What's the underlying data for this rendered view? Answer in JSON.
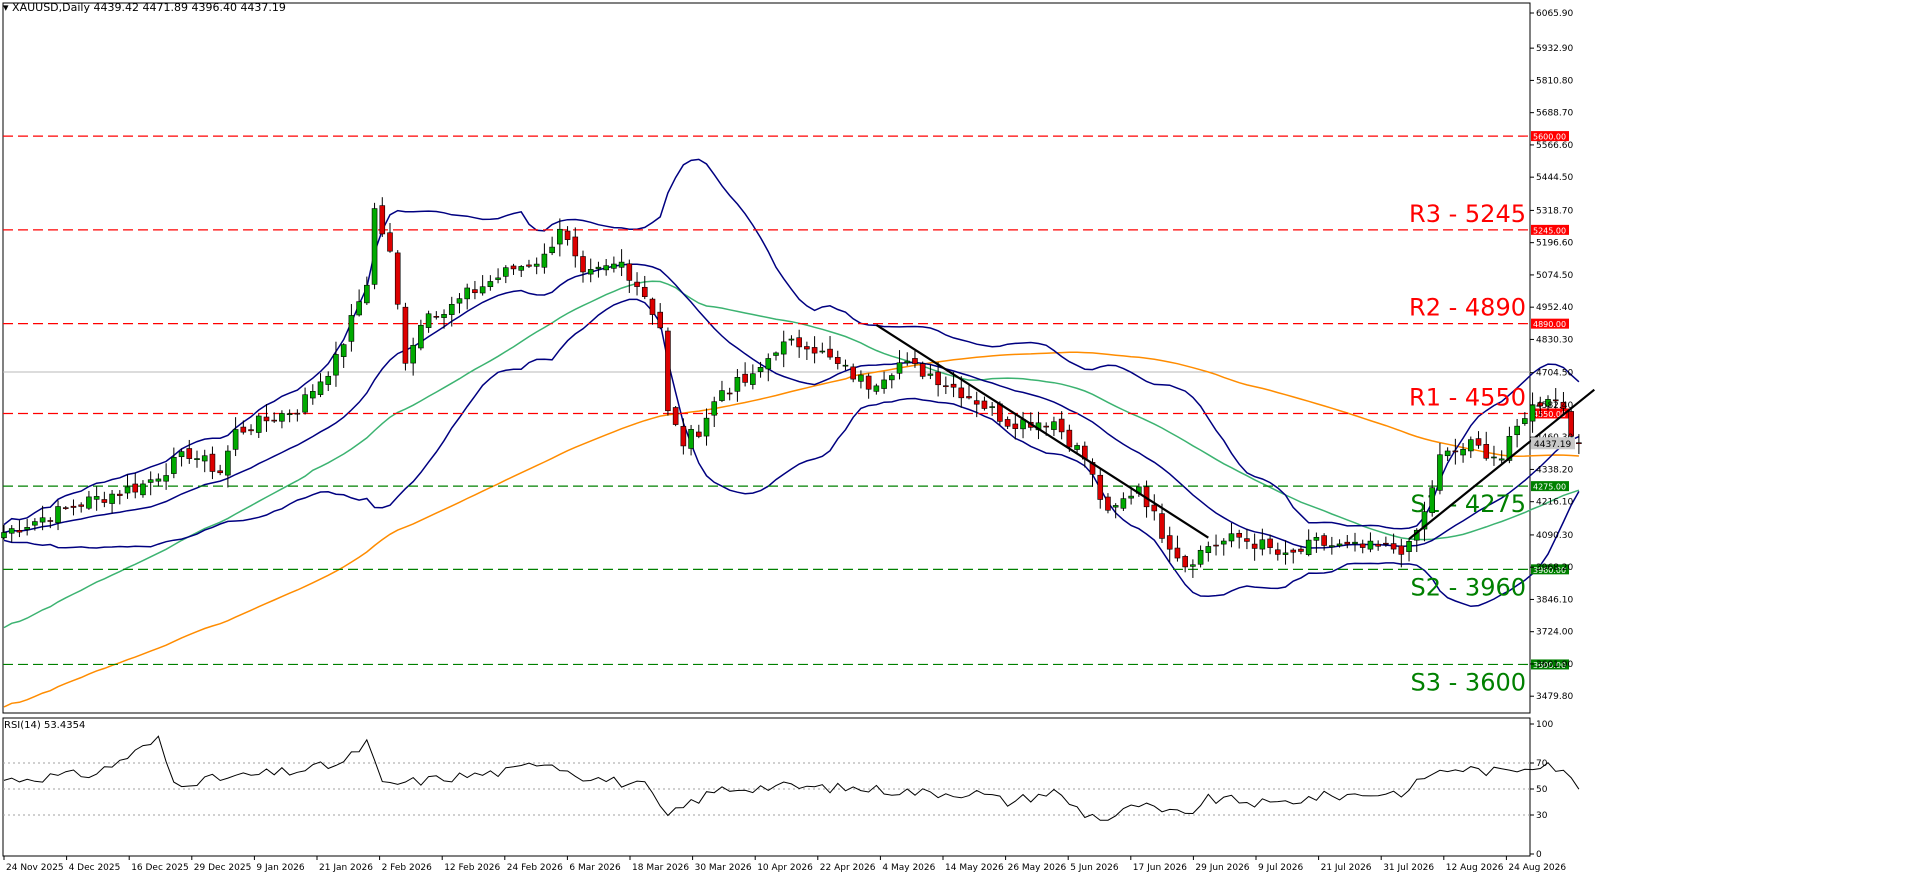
{
  "header": {
    "symbol": "XAUUSD,Daily",
    "ohlc": "4439.42 4471.89 4396.40 4437.19",
    "rsi_label": "RSI(14) 53.4354"
  },
  "colors": {
    "bull": "#00aa00",
    "bear": "#dd0000",
    "bollinger": "#000080",
    "ma_green": "#3cb371",
    "ma_orange": "#ff8c00",
    "resistance": "#ff0000",
    "support": "#008000",
    "trendline": "#000000",
    "rsi": "#000000",
    "grid": "#c0c0c0"
  },
  "chart_data": {
    "type": "candlestick",
    "symbol": "XAUUSD",
    "timeframe": "Daily",
    "price_axis": {
      "range": [
        3420,
        6100
      ],
      "ticks": [
        "6065.90",
        "5932.90",
        "5810.80",
        "5688.70",
        "5566.60",
        "5444.50",
        "5318.70",
        "5196.60",
        "5074.50",
        "4952.40",
        "4830.30",
        "4704.50",
        "4582.40",
        "4460.30",
        "4338.20",
        "4216.10",
        "4090.30",
        "3968.20",
        "3846.10",
        "3724.00",
        "3601.90",
        "3479.80"
      ]
    },
    "date_axis": [
      "24 Nov 2025",
      "4 Dec 2025",
      "16 Dec 2025",
      "29 Dec 2025",
      "9 Jan 2026",
      "21 Jan 2026",
      "2 Feb 2026",
      "12 Feb 2026",
      "24 Feb 2026",
      "6 Mar 2026",
      "18 Mar 2026",
      "30 Mar 2026",
      "10 Apr 2026",
      "22 Apr 2026",
      "4 May 2026",
      "14 May 2026",
      "26 May 2026",
      "5 Jun 2026",
      "17 Jun 2026",
      "29 Jun 2026",
      "9 Jul 2026",
      "21 Jul 2026",
      "31 Jul 2026",
      "12 Aug 2026",
      "24 Aug 2026"
    ],
    "last_price": "4437.19",
    "levels": [
      {
        "label": "R3 - 5245",
        "tag": "5245.00",
        "value": 5245,
        "type": "resistance"
      },
      {
        "label": "R2 - 4890",
        "tag": "4890.00",
        "value": 4890,
        "type": "resistance"
      },
      {
        "label": "R1 - 4550",
        "tag": "4550.00",
        "value": 4550,
        "type": "resistance"
      },
      {
        "label": "S1 - 4275",
        "tag": "4275.00",
        "value": 4275,
        "type": "support"
      },
      {
        "label": "S2 - 3960",
        "tag": "3960.00",
        "value": 3960,
        "type": "support"
      },
      {
        "label": "S3 - 3600",
        "tag": "3600.00",
        "value": 3600,
        "type": "support"
      },
      {
        "label": "",
        "tag": "5600.00",
        "value": 5600,
        "type": "resistance"
      }
    ],
    "price_anchors": [
      [
        0,
        4100
      ],
      [
        10,
        4210
      ],
      [
        18,
        4280
      ],
      [
        24,
        4400
      ],
      [
        28,
        4330
      ],
      [
        30,
        4480
      ],
      [
        38,
        4570
      ],
      [
        43,
        4750
      ],
      [
        47,
        5050
      ],
      [
        48,
        5320
      ],
      [
        50,
        5150
      ],
      [
        52,
        4760
      ],
      [
        55,
        4950
      ],
      [
        57,
        4930
      ],
      [
        60,
        5000
      ],
      [
        66,
        5100
      ],
      [
        70,
        5140
      ],
      [
        72,
        5260
      ],
      [
        75,
        5060
      ],
      [
        80,
        5120
      ],
      [
        83,
        5000
      ],
      [
        85,
        4880
      ],
      [
        86,
        4550
      ],
      [
        88,
        4440
      ],
      [
        90,
        4490
      ],
      [
        93,
        4640
      ],
      [
        97,
        4680
      ],
      [
        100,
        4800
      ],
      [
        104,
        4820
      ],
      [
        108,
        4730
      ],
      [
        112,
        4660
      ],
      [
        116,
        4740
      ],
      [
        120,
        4700
      ],
      [
        126,
        4600
      ],
      [
        130,
        4520
      ],
      [
        136,
        4520
      ],
      [
        140,
        4380
      ],
      [
        143,
        4160
      ],
      [
        147,
        4280
      ],
      [
        150,
        4100
      ],
      [
        153,
        3980
      ],
      [
        156,
        4050
      ],
      [
        160,
        4080
      ],
      [
        163,
        4050
      ],
      [
        166,
        4000
      ],
      [
        170,
        4060
      ],
      [
        174,
        4040
      ],
      [
        178,
        4040
      ],
      [
        182,
        4040
      ],
      [
        184,
        4170
      ],
      [
        186,
        4380
      ],
      [
        190,
        4430
      ],
      [
        194,
        4380
      ],
      [
        197,
        4550
      ],
      [
        200,
        4620
      ],
      [
        202,
        4580
      ],
      [
        204,
        4400
      ]
    ],
    "last_bar_ohlc": [
      4439.42,
      4471.89,
      4396.4,
      4437.19
    ],
    "trendlines": [
      {
        "from": [
          113,
          4885
        ],
        "to": [
          156,
          4080
        ],
        "name": "downtrend"
      },
      {
        "from": [
          182,
          4075
        ],
        "to": [
          206,
          4640
        ],
        "name": "uptrend"
      }
    ],
    "indicators": [
      "Bollinger Bands",
      "Moving Average (green)",
      "Moving Average (orange)",
      "RSI(14)"
    ],
    "rsi": {
      "name": "RSI(14)",
      "last": 53.4354,
      "ticks": [
        100,
        70,
        50,
        30,
        0
      ],
      "range": [
        0,
        100
      ],
      "anchors": [
        [
          0,
          57
        ],
        [
          12,
          62
        ],
        [
          20,
          88
        ],
        [
          22,
          55
        ],
        [
          28,
          58
        ],
        [
          38,
          64
        ],
        [
          44,
          70
        ],
        [
          47,
          86
        ],
        [
          49,
          53
        ],
        [
          58,
          59
        ],
        [
          66,
          64
        ],
        [
          70,
          72
        ],
        [
          75,
          60
        ],
        [
          83,
          52
        ],
        [
          86,
          28
        ],
        [
          89,
          40
        ],
        [
          93,
          50
        ],
        [
          100,
          52
        ],
        [
          106,
          51
        ],
        [
          112,
          50
        ],
        [
          120,
          47
        ],
        [
          126,
          47
        ],
        [
          130,
          40
        ],
        [
          136,
          48
        ],
        [
          140,
          31
        ],
        [
          143,
          27
        ],
        [
          147,
          38
        ],
        [
          150,
          32
        ],
        [
          153,
          30
        ],
        [
          156,
          42
        ],
        [
          160,
          41
        ],
        [
          164,
          38
        ],
        [
          170,
          44
        ],
        [
          176,
          46
        ],
        [
          182,
          48
        ],
        [
          184,
          60
        ],
        [
          188,
          66
        ],
        [
          194,
          63
        ],
        [
          200,
          71
        ],
        [
          202,
          62
        ],
        [
          204,
          53
        ]
      ]
    }
  }
}
